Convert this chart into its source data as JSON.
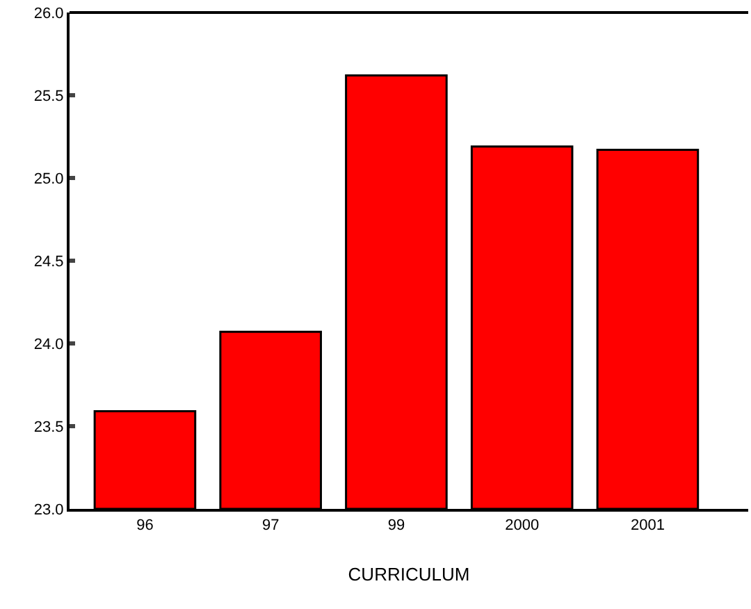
{
  "chart_data": {
    "type": "bar",
    "xlabel": "CURRICULUM",
    "categories": [
      "96",
      "97",
      "99",
      "2000",
      "2001"
    ],
    "values": [
      23.59,
      24.07,
      25.62,
      25.19,
      25.17
    ],
    "color": "#ff0000",
    "ylim": [
      23.0,
      26.0
    ],
    "yticks": [
      {
        "value": 23.0,
        "label": "23.0"
      },
      {
        "value": 23.5,
        "label": "23.5"
      },
      {
        "value": 24.0,
        "label": "24.0"
      },
      {
        "value": 24.5,
        "label": "24.5"
      },
      {
        "value": 25.0,
        "label": "25.0"
      },
      {
        "value": 25.5,
        "label": "25.5"
      },
      {
        "value": 26.0,
        "label": "26.0"
      }
    ],
    "marker": "none"
  }
}
